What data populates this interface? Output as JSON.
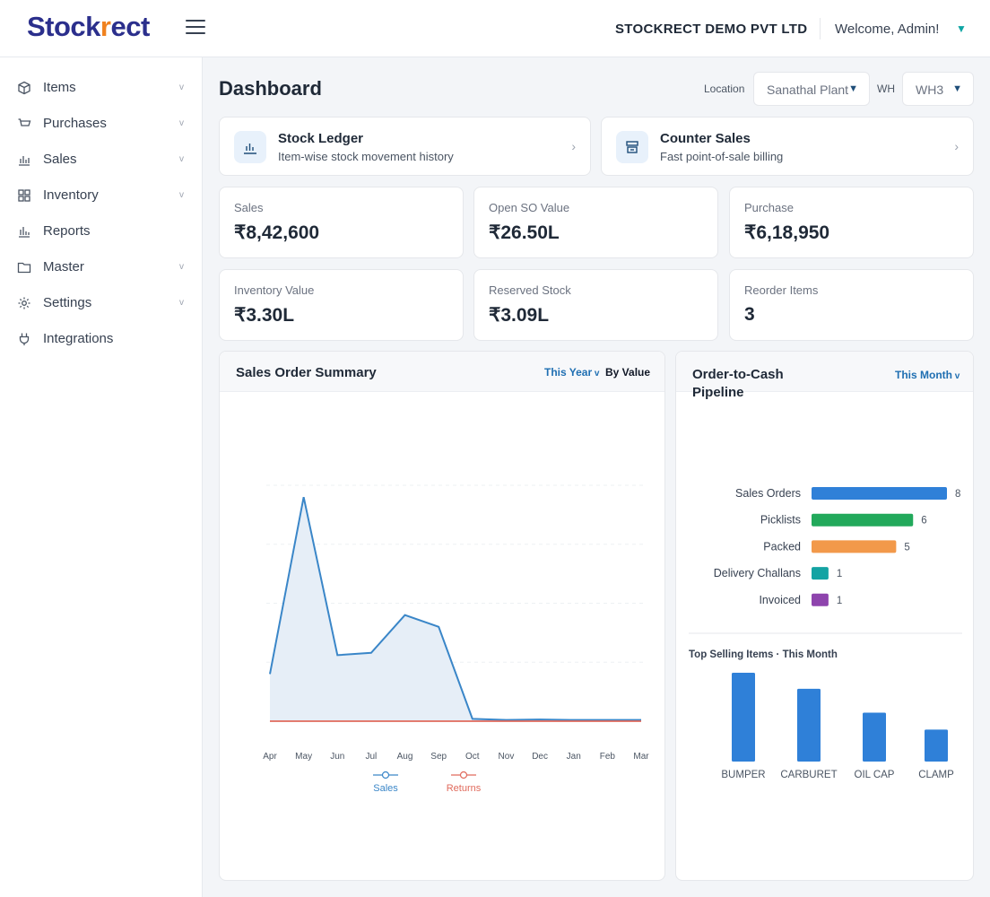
{
  "app": {
    "logo_prefix": "Stock",
    "logo_mark": "r",
    "logo_suffix": "ect"
  },
  "header": {
    "company": "STOCKRECT DEMO PVT LTD",
    "welcome": "Welcome, Admin!"
  },
  "sidebar": {
    "items": [
      {
        "label": "Items",
        "icon": "box-icon",
        "has_children": true
      },
      {
        "label": "Purchases",
        "icon": "cart-icon",
        "has_children": true
      },
      {
        "label": "Sales",
        "icon": "bar-chart-icon",
        "has_children": true
      },
      {
        "label": "Inventory",
        "icon": "grid-icon",
        "has_children": true
      },
      {
        "label": "Reports",
        "icon": "bar-chart-icon",
        "has_children": false
      },
      {
        "label": "Master",
        "icon": "folder-icon",
        "has_children": true
      },
      {
        "label": "Settings",
        "icon": "gear-icon",
        "has_children": true
      },
      {
        "label": "Integrations",
        "icon": "plug-icon",
        "has_children": false
      }
    ],
    "chevron": "v"
  },
  "page": {
    "title": "Dashboard",
    "location_label": "Location",
    "location_value": "Sanathal Plant",
    "wh_label": "WH",
    "wh_value": "WH3"
  },
  "quick_links": [
    {
      "title": "Stock Ledger",
      "subtitle": "Item-wise stock movement history",
      "icon": "bar-chart-icon"
    },
    {
      "title": "Counter Sales",
      "subtitle": "Fast point-of-sale billing",
      "icon": "register-icon"
    }
  ],
  "kpis": [
    {
      "label": "Sales",
      "value": "₹8,42,600"
    },
    {
      "label": "Open SO Value",
      "value": "₹26.50L"
    },
    {
      "label": "Purchase",
      "value": "₹6,18,950"
    },
    {
      "label": "Inventory Value",
      "value": "₹3.30L"
    },
    {
      "label": "Reserved Stock",
      "value": "₹3.09L"
    },
    {
      "label": "Reorder Items",
      "value": "3"
    }
  ],
  "sales_summary": {
    "title": "Sales Order Summary",
    "period_filter": "This Year",
    "mode_filter": "By Value"
  },
  "pipeline": {
    "title_line1": "Order-to-Cash",
    "title_line2": "Pipeline",
    "period_filter": "This Month",
    "top_selling_title": "Top Selling Items · This Month"
  },
  "colors": {
    "accent": "#1f6fb2",
    "sales_line": "#3a86c8",
    "sales_fill": "#e6eef7",
    "returns_line": "#e06a5c",
    "logo_main": "#2b2f8c",
    "logo_mark": "#f0821f"
  },
  "chart_data": [
    {
      "type": "area",
      "categories": [
        "Apr",
        "May",
        "Jun",
        "Jul",
        "Aug",
        "Sep",
        "Oct",
        "Nov",
        "Dec",
        "Jan",
        "Feb",
        "Mar"
      ],
      "ylim": [
        0,
        100
      ],
      "series": [
        {
          "name": "Sales",
          "values": [
            20,
            95,
            28,
            29,
            45,
            40,
            1,
            0.5,
            0.7,
            0.5,
            0.5,
            0.5
          ],
          "color": "#3a86c8"
        },
        {
          "name": "Returns",
          "values": [
            0,
            0,
            0,
            0,
            0,
            0,
            0,
            0,
            0,
            0,
            0,
            0
          ],
          "color": "#e06a5c"
        }
      ],
      "grid": "horizontal dashed",
      "legend": "bottom"
    },
    {
      "type": "bar",
      "orientation": "horizontal",
      "categories": [
        "Sales Orders",
        "Picklists",
        "Packed",
        "Delivery Challans",
        "Invoiced"
      ],
      "values": [
        8,
        6,
        5,
        1,
        1
      ],
      "colors": [
        "#2f80d8",
        "#22a95b",
        "#f2994a",
        "#14a3a3",
        "#8e44ad"
      ],
      "xlim": [
        0,
        8
      ]
    },
    {
      "type": "bar",
      "title": "Top Selling Items · This Month",
      "categories": [
        "BUMPER",
        "CARBURET",
        "OIL CAP",
        "CLAMP"
      ],
      "values": [
        100,
        82,
        55,
        36
      ],
      "ylim": [
        0,
        100
      ],
      "color": "#2f80d8"
    }
  ]
}
